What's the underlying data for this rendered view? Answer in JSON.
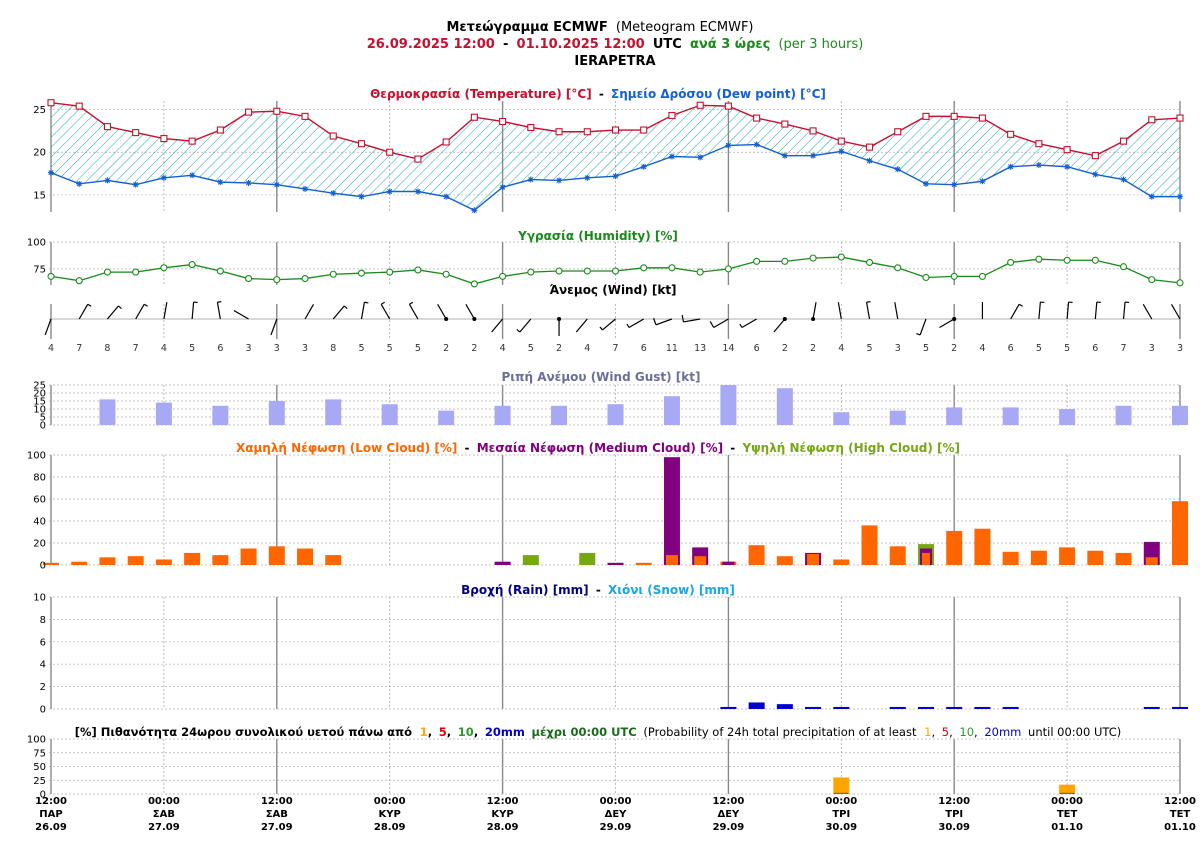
{
  "header": {
    "title_main": "Μετεώγραμμα ECMWF",
    "title_paren": "(Meteogram ECMWF)",
    "range_start": "26.09.2025 12:00",
    "range_dash": "-",
    "range_end": "01.10.2025 12:00",
    "range_utc": "UTC",
    "range_step": "ανά 3 ώρες",
    "range_step_en": "(per 3 hours)",
    "location": "IERAPETRA"
  },
  "colors": {
    "temperature": "#c8102e",
    "dewpoint": "#1560d0",
    "humidity": "#1a8a1a",
    "gust": "#a7a9f5",
    "low_cloud": "#ff6600",
    "medium_cloud": "#800080",
    "high_cloud": "#77a814",
    "rain": "#0000cc",
    "prob1": "#ffa500",
    "prob5": "#e00000",
    "prob10": "#2e9a2e",
    "prob20": "#0000cc",
    "grid": "#999999",
    "day_line": "#888888"
  },
  "panels": {
    "temperature_title_a": "Θερμοκρασία (Temperature) [°C]",
    "temperature_title_sep": "-",
    "temperature_title_b": "Σημείο Δρόσου (Dew point) [°C]",
    "humidity_title": "Υγρασία (Humidity) [%]",
    "wind_title": "Άνεμος (Wind) [kt]",
    "gust_title": "Ριπή Ανέμου (Wind Gust) [kt]",
    "cloud_title_low": "Χαμηλή Νέφωση (Low Cloud) [%]",
    "cloud_title_sep": "-",
    "cloud_title_medium": "Μεσαία Νέφωση (Medium Cloud) [%]",
    "cloud_title_high": "Υψηλή Νέφωση (High Cloud) [%]",
    "rain_title_a": "Βροχή (Rain) [mm]",
    "rain_title_sep": "-",
    "rain_title_b": "Χιόνι (Snow) [mm]",
    "prob_title_a": "[%] Πιθανότητα 24ωρου συνολικού υετού πάνω από",
    "prob_t1": "1",
    "prob_t5": "5",
    "prob_t10": "10",
    "prob_t20": "20mm",
    "prob_title_b": "μέχρι 00:00 UTC",
    "prob_title_c": "(Probability of 24h total precipitation of at least",
    "prob_title_d": "until 00:00 UTC)",
    "comma": ","
  },
  "chart_data": [
    {
      "type": "line",
      "panel": "temperature",
      "ylim": [
        13,
        26
      ],
      "yticks": [
        15,
        20,
        25
      ],
      "series": [
        {
          "name": "Θερμοκρασία (Temperature) [°C]",
          "values": [
            25.8,
            25.4,
            23.0,
            22.3,
            21.6,
            21.3,
            22.6,
            24.7,
            24.8,
            24.2,
            21.9,
            21.0,
            20.0,
            19.2,
            21.2,
            24.1,
            23.6,
            22.9,
            22.4,
            22.4,
            22.6,
            22.6,
            24.3,
            25.5,
            25.4,
            24.0,
            23.3,
            22.5,
            21.3,
            20.6,
            22.4,
            24.2,
            24.2,
            24.0,
            22.1,
            21.0,
            20.3,
            19.6,
            21.3,
            23.8,
            24.0
          ]
        },
        {
          "name": "Σημείο Δρόσου (Dew point) [°C]",
          "values": [
            17.6,
            16.3,
            16.7,
            16.2,
            17.0,
            17.3,
            16.5,
            16.4,
            16.2,
            15.7,
            15.2,
            14.8,
            15.4,
            15.4,
            14.8,
            13.2,
            15.9,
            16.8,
            16.7,
            17.0,
            17.2,
            18.3,
            19.5,
            19.4,
            20.8,
            20.9,
            19.6,
            19.6,
            20.1,
            19.0,
            18.0,
            16.3,
            16.2,
            16.6,
            18.3,
            18.5,
            18.3,
            17.4,
            16.8,
            14.8,
            14.8
          ]
        }
      ]
    },
    {
      "type": "line",
      "panel": "humidity",
      "ylim": [
        60,
        100
      ],
      "yticks": [
        75,
        100
      ],
      "series": [
        {
          "name": "Υγρασία (Humidity) [%]",
          "values": [
            68,
            64,
            72,
            72,
            76,
            79,
            73,
            66,
            65,
            66,
            70,
            71,
            72,
            74,
            70,
            61,
            68,
            72,
            73,
            73,
            73,
            76,
            76,
            72,
            75,
            82,
            82,
            85,
            86,
            81,
            76,
            67,
            68,
            68,
            81,
            84,
            83,
            83,
            77,
            65,
            62
          ]
        }
      ]
    },
    {
      "type": "table",
      "panel": "wind",
      "speeds_kt": [
        4,
        7,
        8,
        7,
        4,
        5,
        6,
        3,
        3,
        3,
        8,
        5,
        5,
        5,
        2,
        2,
        4,
        5,
        2,
        4,
        7,
        6,
        11,
        13,
        14,
        6,
        2,
        2,
        4,
        5,
        3,
        5,
        2,
        4,
        6,
        5,
        5,
        6,
        7,
        3,
        3
      ],
      "directions_deg": [
        200,
        30,
        40,
        30,
        10,
        5,
        350,
        300,
        200,
        30,
        40,
        10,
        330,
        330,
        330,
        330,
        220,
        220,
        180,
        220,
        230,
        240,
        250,
        260,
        240,
        240,
        220,
        10,
        350,
        350,
        350,
        200,
        240,
        360,
        30,
        5,
        5,
        5,
        5,
        330,
        330
      ]
    },
    {
      "type": "bar",
      "panel": "gust",
      "ylim": [
        0,
        25
      ],
      "yticks": [
        0,
        5,
        10,
        15,
        20,
        25
      ],
      "series": [
        {
          "name": "Ριπή Ανέμου (Wind Gust) [kt]",
          "values": [
            null,
            null,
            16,
            null,
            14,
            null,
            12,
            null,
            15,
            null,
            16,
            null,
            13,
            null,
            9,
            null,
            12,
            null,
            12,
            null,
            13,
            null,
            18,
            null,
            25,
            null,
            23,
            null,
            8,
            null,
            9,
            null,
            11,
            null,
            11,
            null,
            10,
            null,
            12,
            null,
            12
          ]
        }
      ]
    },
    {
      "type": "bar",
      "panel": "cloud",
      "ylim": [
        0,
        100
      ],
      "yticks": [
        0,
        20,
        40,
        60,
        80,
        100
      ],
      "series": [
        {
          "name": "Χαμηλή Νέφωση (Low Cloud) [%]",
          "values": [
            2,
            3,
            7,
            8,
            5,
            11,
            9,
            15,
            17,
            15,
            9,
            0,
            0,
            0,
            0,
            0,
            0,
            0,
            0,
            0,
            0,
            2,
            9,
            8,
            3,
            18,
            8,
            10,
            5,
            36,
            17,
            11,
            31,
            33,
            12,
            13,
            16,
            13,
            11,
            7,
            58
          ]
        },
        {
          "name": "Μεσαία Νέφωση (Medium Cloud) [%]",
          "values": [
            0,
            0,
            0,
            0,
            0,
            0,
            0,
            0,
            0,
            0,
            0,
            0,
            0,
            0,
            0,
            0,
            3,
            0,
            0,
            0,
            2,
            0,
            98,
            16,
            3,
            0,
            0,
            11,
            0,
            0,
            0,
            15,
            0,
            0,
            0,
            0,
            0,
            0,
            0,
            21,
            0
          ]
        },
        {
          "name": "Υψηλή Νέφωση (High Cloud) [%]",
          "values": [
            0,
            0,
            0,
            0,
            0,
            0,
            0,
            0,
            0,
            0,
            0,
            0,
            0,
            0,
            0,
            0,
            0,
            9,
            0,
            11,
            0,
            0,
            0,
            0,
            0,
            0,
            0,
            0,
            0,
            0,
            0,
            19,
            0,
            0,
            0,
            0,
            0,
            0,
            0,
            0,
            0
          ]
        }
      ]
    },
    {
      "type": "bar",
      "panel": "rain",
      "ylim": [
        0,
        10
      ],
      "yticks": [
        0,
        2,
        4,
        6,
        8,
        10
      ],
      "series": [
        {
          "name": "Βροχή (Rain) [mm]",
          "values": [
            0,
            0,
            0,
            0,
            0,
            0,
            0,
            0,
            0,
            0,
            0,
            0,
            0,
            0,
            0,
            0,
            0,
            0,
            0,
            0,
            0,
            0,
            0,
            0,
            0.05,
            0.45,
            0.3,
            0.05,
            0.05,
            0,
            0.05,
            0.05,
            0.05,
            0.05,
            0.05,
            0,
            0,
            0,
            0,
            0.05,
            0.05
          ]
        },
        {
          "name": "Χιόνι (Snow) [mm]",
          "values": [
            0,
            0,
            0,
            0,
            0,
            0,
            0,
            0,
            0,
            0,
            0,
            0,
            0,
            0,
            0,
            0,
            0,
            0,
            0,
            0,
            0,
            0,
            0,
            0,
            0,
            0,
            0,
            0,
            0,
            0,
            0,
            0,
            0,
            0,
            0,
            0,
            0,
            0,
            0,
            0,
            0
          ]
        }
      ]
    },
    {
      "type": "bar",
      "panel": "probability",
      "ylim": [
        0,
        100
      ],
      "yticks": [
        0,
        25,
        50,
        75,
        100
      ],
      "x": [
        "00:00 ΤΡΙ 30.09",
        "00:00 ΤΕΤ 01.10"
      ],
      "series": [
        {
          "name": "1",
          "values": [
            30,
            17
          ]
        },
        {
          "name": "5",
          "values": [
            2,
            2
          ]
        },
        {
          "name": "10",
          "values": [
            2,
            2
          ]
        },
        {
          "name": "20mm",
          "values": [
            0,
            0
          ]
        }
      ]
    }
  ],
  "time_axis": [
    {
      "time": "12:00",
      "day": "ΠΑΡ",
      "date": "26.09"
    },
    {
      "time": "00:00",
      "day": "ΣΑΒ",
      "date": "27.09"
    },
    {
      "time": "12:00",
      "day": "ΣΑΒ",
      "date": "27.09"
    },
    {
      "time": "00:00",
      "day": "ΚΥΡ",
      "date": "28.09"
    },
    {
      "time": "12:00",
      "day": "ΚΥΡ",
      "date": "28.09"
    },
    {
      "time": "00:00",
      "day": "ΔΕΥ",
      "date": "29.09"
    },
    {
      "time": "12:00",
      "day": "ΔΕΥ",
      "date": "29.09"
    },
    {
      "time": "00:00",
      "day": "ΤΡΙ",
      "date": "30.09"
    },
    {
      "time": "12:00",
      "day": "ΤΡΙ",
      "date": "30.09"
    },
    {
      "time": "00:00",
      "day": "ΤΕΤ",
      "date": "01.10"
    },
    {
      "time": "12:00",
      "day": "ΤΕΤ",
      "date": "01.10"
    }
  ]
}
